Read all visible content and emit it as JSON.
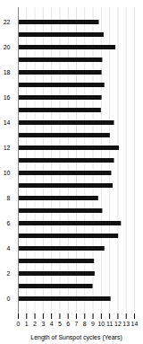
{
  "chart_data": {
    "type": "bar",
    "orientation": "horizontal",
    "categories": [
      "0",
      null,
      "2",
      null,
      "4",
      null,
      "6",
      null,
      "8",
      null,
      "10",
      null,
      "12",
      null,
      "14",
      null,
      "16",
      null,
      "18",
      null,
      "20",
      null,
      "22"
    ],
    "values": [
      11.17,
      9.0,
      9.25,
      9.17,
      10.42,
      12.08,
      12.42,
      10.17,
      9.67,
      11.42,
      11.25,
      11.58,
      12.17,
      11.08,
      11.58,
      10.0,
      10.08,
      10.42,
      10.08,
      10.17,
      11.75,
      10.33,
      9.75
    ],
    "color": "#111111",
    "xlabel": "Length of Sunspot cycles (Years)",
    "xlim": [
      0,
      14
    ],
    "xticks": [
      0,
      1,
      2,
      3,
      4,
      5,
      6,
      7,
      8,
      9,
      10,
      11,
      12,
      13,
      14
    ],
    "grid": true
  }
}
